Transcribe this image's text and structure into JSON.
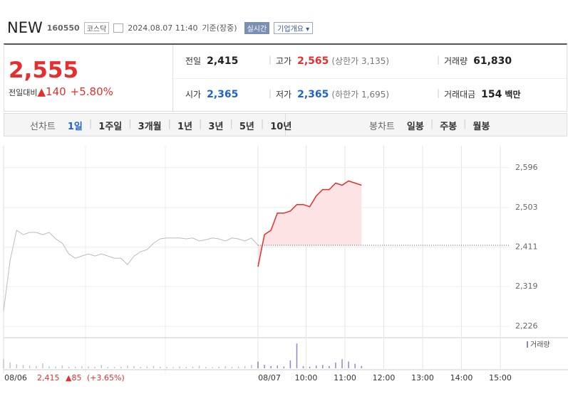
{
  "header": {
    "name": "NEW",
    "code": "160550",
    "market": "코스닥",
    "datetime": "2024.08.07 11:40",
    "basis": "기준(장중)",
    "realtime": "실시간",
    "company_info": "기업개요"
  },
  "quote": {
    "price": "2,555",
    "change_label": "전일대비",
    "change": "▲140",
    "change_pct": "+5.80%",
    "items": [
      {
        "label": "전일",
        "value": "2,415"
      },
      {
        "label": "고가",
        "value": "2,565",
        "note": "(상한가 3,135)"
      },
      {
        "label": "거래량",
        "value": "61,830"
      },
      {
        "label": "시가",
        "value": "2,365"
      },
      {
        "label": "저가",
        "value": "2,365",
        "note": "(하한가 1,695)"
      },
      {
        "label": "거래대금",
        "value": "154",
        "unit": "백만"
      }
    ]
  },
  "tabs": {
    "line_label": "선차트",
    "line": [
      "1일",
      "1주일",
      "3개월",
      "1년",
      "3년",
      "5년",
      "10년"
    ],
    "candle_label": "봉차트",
    "candle": [
      "일봉",
      "주봉",
      "월봉"
    ]
  },
  "chart_data": {
    "type": "line",
    "x_labels": [
      "08/06",
      "08/07",
      "10:00",
      "11:00",
      "12:00",
      "13:00",
      "14:00",
      "15:00"
    ],
    "ylim": [
      2208,
      2647
    ],
    "yticks": [
      {
        "value": 2596,
        "label": "2,596"
      },
      {
        "value": 2503,
        "label": "2,503"
      },
      {
        "value": 2411,
        "label": "2,411"
      },
      {
        "value": 2319,
        "label": "2,319"
      },
      {
        "value": 2226,
        "label": "2,226"
      }
    ],
    "grid": true,
    "prev_close": {
      "value": 2415,
      "label": "2,415"
    },
    "prev_day_info": {
      "change": "▲85",
      "change_pct": "(+3.65%)"
    },
    "series": [
      {
        "color": "#bbbbbb",
        "values": [
          2262,
          2380,
          2450,
          2440,
          2445,
          2445,
          2440,
          2445,
          2430,
          2420,
          2395,
          2385,
          2390,
          2395,
          2390,
          2395,
          2390,
          2385,
          2385,
          2370,
          2390,
          2400,
          2405,
          2420,
          2430,
          2432,
          2432,
          2432,
          2430,
          2432,
          2425,
          2428,
          2432,
          2430,
          2425,
          2432,
          2430,
          2425,
          2432,
          2415
        ]
      },
      {
        "color": "#e52e2e",
        "color_down": "#3a7bd5",
        "fill": "#fde3e3",
        "values": [
          2365,
          2440,
          2450,
          2490,
          2490,
          2495,
          2510,
          2510,
          2505,
          2530,
          2545,
          2545,
          2560,
          2555,
          2565,
          2560,
          2555
        ]
      }
    ],
    "volume": {
      "name": "거래량",
      "ylim": [
        0,
        12000
      ],
      "series": [
        {
          "color": "#c4c4c4",
          "values": [
            4000,
            2500,
            1800,
            1500,
            1200,
            1000,
            2200,
            900,
            800,
            1300,
            700,
            600,
            900,
            800,
            700,
            1500,
            600,
            500,
            700,
            1200,
            900,
            600,
            800,
            1000,
            700,
            600,
            500,
            800,
            600,
            700,
            1100,
            600,
            500,
            700,
            900,
            600,
            800,
            1000,
            1500,
            2500
          ]
        },
        {
          "color": "#8c86cf",
          "values": [
            3000,
            1500,
            1000,
            1200,
            800,
            3500,
            11000,
            900,
            700,
            1200,
            1500,
            1000,
            2500,
            4000,
            3000,
            2000,
            1000
          ]
        }
      ]
    }
  }
}
